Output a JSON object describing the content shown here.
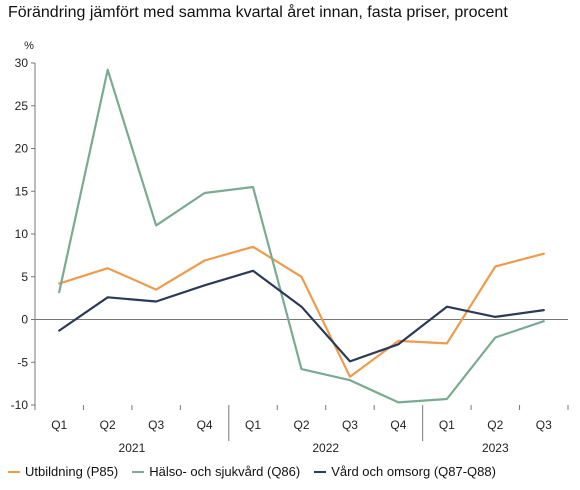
{
  "chart_data": {
    "type": "line",
    "title": "Förändring jämfört med samma kvartal året innan, fasta priser, procent",
    "unit_label": "%",
    "categories": [
      "Q1",
      "Q2",
      "Q3",
      "Q4",
      "Q1",
      "Q2",
      "Q3",
      "Q4",
      "Q1",
      "Q2",
      "Q3"
    ],
    "years": [
      {
        "label": "2021",
        "start": 0,
        "end": 3
      },
      {
        "label": "2022",
        "start": 4,
        "end": 7
      },
      {
        "label": "2023",
        "start": 8,
        "end": 10
      }
    ],
    "ylim": [
      -10,
      30
    ],
    "yticks": [
      -10,
      -5,
      0,
      5,
      10,
      15,
      20,
      25,
      30
    ],
    "grid": false,
    "legend_position": "bottom",
    "series": [
      {
        "name": "Utbildning (P85)",
        "color": "#ee9b4d",
        "values": [
          4.2,
          6.0,
          3.5,
          6.9,
          8.5,
          5.0,
          -6.7,
          -2.5,
          -2.8,
          6.2,
          7.7
        ]
      },
      {
        "name": "Hälso- och sjukvård (Q86)",
        "color": "#7aaa91",
        "values": [
          3.2,
          29.2,
          11.0,
          14.8,
          15.5,
          -5.8,
          -7.1,
          -9.7,
          -9.3,
          -2.1,
          -0.2
        ]
      },
      {
        "name": "Vård och omsorg (Q87-Q88)",
        "color": "#2b3a55",
        "values": [
          -1.3,
          2.6,
          2.1,
          4.0,
          5.7,
          1.5,
          -4.9,
          -2.9,
          1.5,
          0.3,
          1.1
        ]
      }
    ]
  }
}
